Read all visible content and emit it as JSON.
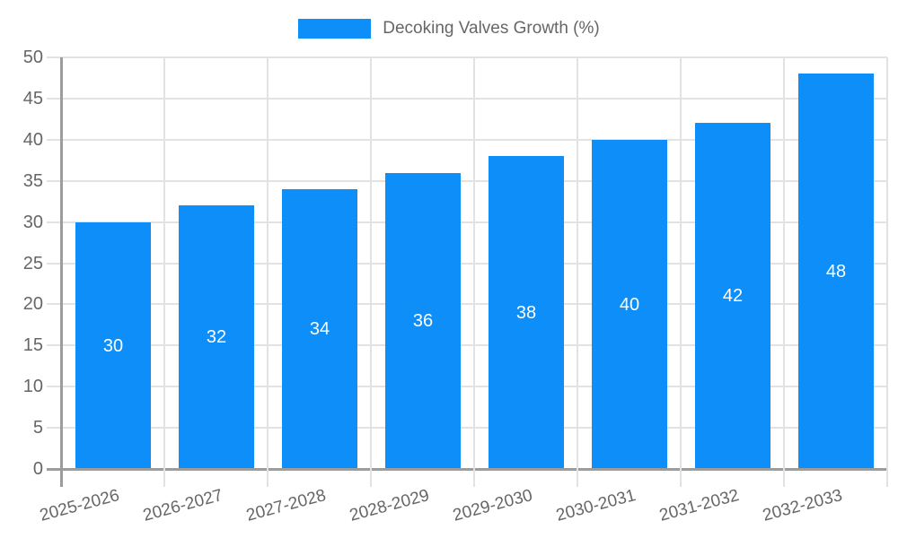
{
  "chart_data": {
    "type": "bar",
    "title": "",
    "legend": {
      "label": "Decoking Valves Growth (%)",
      "position": "top"
    },
    "categories": [
      "2025-2026",
      "2026-2027",
      "2027-2028",
      "2028-2029",
      "2029-2030",
      "2030-2031",
      "2031-2032",
      "2032-2033"
    ],
    "series": [
      {
        "name": "Decoking Valves Growth (%)",
        "values": [
          30,
          32,
          34,
          36,
          38,
          40,
          42,
          48
        ]
      }
    ],
    "xlabel": "",
    "ylabel": "",
    "ylim": [
      0,
      50
    ],
    "ytick_step": 5,
    "grid": true,
    "x_label_rotation_deg": -15,
    "bar_value_labels_visible": true,
    "colors": {
      "bar": "#0d8ef8",
      "bar_label": "#ffffff",
      "grid": "#e2e2e2",
      "axis": "#9c9c9c",
      "text": "#666666",
      "background": "#ffffff"
    }
  }
}
